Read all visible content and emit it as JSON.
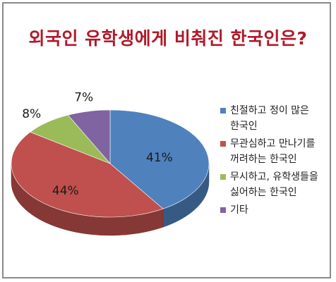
{
  "chart_data": {
    "type": "pie",
    "title": "외국인 유학생에게 비춰진 한국인은?",
    "categories": [
      "친절하고 정이 많은 한국인",
      "무관심하고 만나기를 꺼려하는 한국인",
      "무시하고, 유학생들을 싫어하는 한국인",
      "기타"
    ],
    "values": [
      41,
      44,
      8,
      7
    ],
    "data_labels": [
      "41%",
      "44%",
      "8%",
      "7%"
    ],
    "colors": [
      "#4f81bd",
      "#c0504d",
      "#9bbb59",
      "#8064a2"
    ],
    "legend": {
      "placement": "right",
      "entries": [
        [
          "친절하고 정이 많은",
          "한국인"
        ],
        [
          "무관심하고 만나기를",
          "꺼려하는 한국인"
        ],
        [
          "무시하고, 유학생들을",
          "싫어하는 한국인"
        ],
        [
          "기타"
        ]
      ]
    }
  }
}
